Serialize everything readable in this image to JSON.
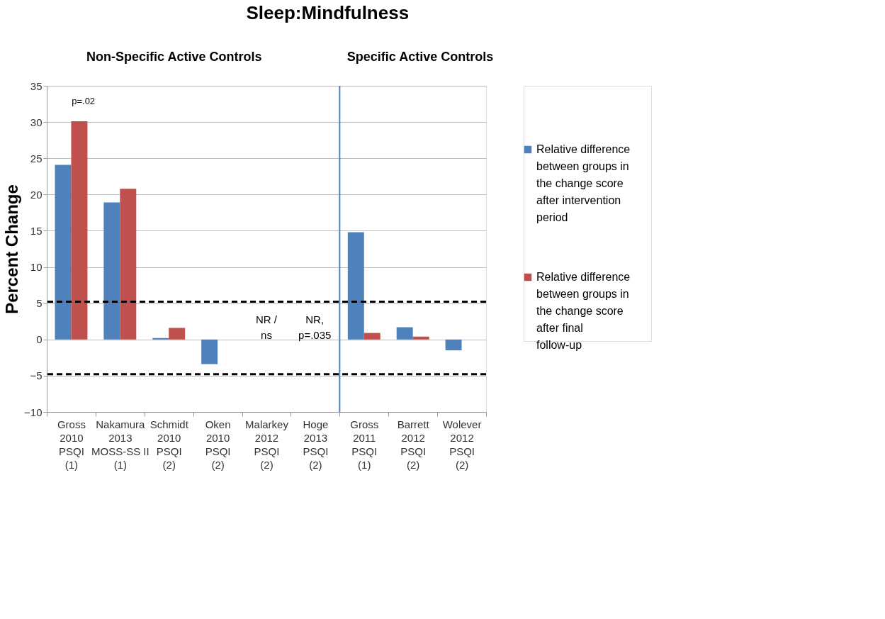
{
  "chart_data": {
    "type": "bar",
    "title": "Sleep:Mindfulness",
    "ylabel": "Percent Change",
    "categories": [
      "Gross\n2010\n\nPSQI\n(1)",
      "Nakamura\n2013\n\nMOSS-SS II\n(1)",
      "Schmidt\n2010\n\nPSQI\n(2)",
      "Oken\n2010\n\nPSQI\n(2)",
      "Malarkey\n2012\n\nPSQI\n(2)",
      "Hoge\n2013\n\nPSQI\n(2)",
      "Gross\n2011\n\nPSQI\n(1)",
      "Barrett\n2012\n\nPSQI\n(2)",
      "Wolever\n2012\n\nPSQI\n(2)"
    ],
    "series": [
      {
        "name": "Relative difference between groups in the change score after intervention period",
        "color": "#4f81bd",
        "values": [
          24.1,
          18.9,
          0.2,
          -3.4,
          null,
          null,
          14.8,
          1.7,
          -1.5
        ]
      },
      {
        "name": "Relative difference between groups in the change score after final follow-up",
        "color": "#c0504d",
        "values": [
          30.1,
          20.8,
          1.6,
          null,
          null,
          null,
          0.9,
          0.4,
          null
        ]
      }
    ],
    "ylim": [
      -10,
      35
    ],
    "yticks": [
      -10,
      -5,
      0,
      5,
      10,
      15,
      20,
      25,
      30,
      35
    ],
    "grid": "y",
    "legend": "right",
    "ref_lines": [
      {
        "axis": "y",
        "value": 5.2,
        "color": "#000000",
        "line_style": "dashed"
      },
      {
        "axis": "y",
        "value": -4.8,
        "color": "#000000",
        "line_style": "dashed"
      },
      {
        "axis": "x",
        "value": "Gross\n2011\n\nPSQI\n(1)",
        "color": "#4f81bd",
        "line_style": "solid"
      }
    ],
    "annotations": [
      "Non-Specific Active Controls",
      "Specific Active Controls",
      "p=.02",
      "NR /\nns",
      "NR,\np=.035"
    ]
  }
}
